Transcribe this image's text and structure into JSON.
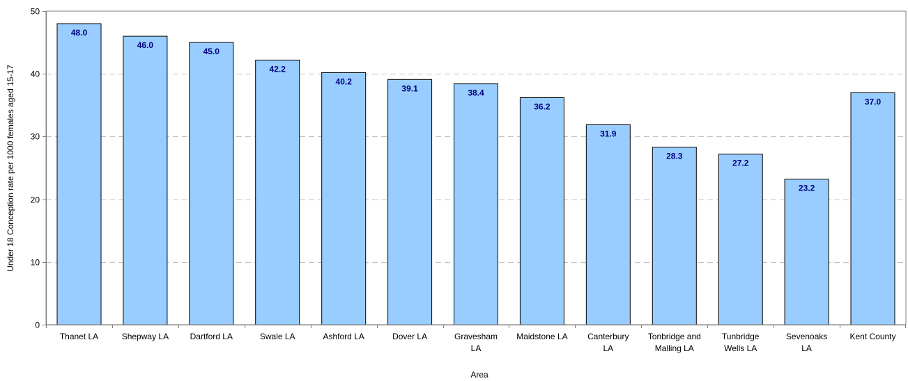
{
  "chart_data": {
    "type": "bar",
    "title": "",
    "xlabel": "Area",
    "ylabel": "Under 18 Conception rate per 1000 females aged 15-17",
    "ylim": [
      0,
      50
    ],
    "yticks": [
      0,
      10,
      20,
      30,
      40,
      50
    ],
    "grid": "horizontal dashed",
    "categories": [
      [
        "Thanet LA"
      ],
      [
        "Shepway LA"
      ],
      [
        "Dartford LA"
      ],
      [
        "Swale LA"
      ],
      [
        "Ashford LA"
      ],
      [
        "Dover LA"
      ],
      [
        "Gravesham",
        "LA"
      ],
      [
        "Maidstone LA"
      ],
      [
        "Canterbury",
        "LA"
      ],
      [
        "Tonbridge and",
        "Malling LA"
      ],
      [
        "Tunbridge",
        "Wells LA"
      ],
      [
        "Sevenoaks",
        "LA"
      ],
      [
        "Kent County"
      ]
    ],
    "values": [
      48.0,
      46.0,
      45.0,
      42.2,
      40.2,
      39.1,
      38.4,
      36.2,
      31.9,
      28.3,
      27.2,
      23.2,
      37.0
    ],
    "data_labels": [
      "48.0",
      "46.0",
      "45.0",
      "42.2",
      "40.2",
      "39.1",
      "38.4",
      "36.2",
      "31.9",
      "28.3",
      "27.2",
      "23.2",
      "37.0"
    ],
    "colors": {
      "bar_fill": "#99CCFF",
      "bar_stroke": "#000000",
      "data_label": "#000080",
      "grid": "#C0C0C0",
      "axis": "#808080"
    }
  }
}
